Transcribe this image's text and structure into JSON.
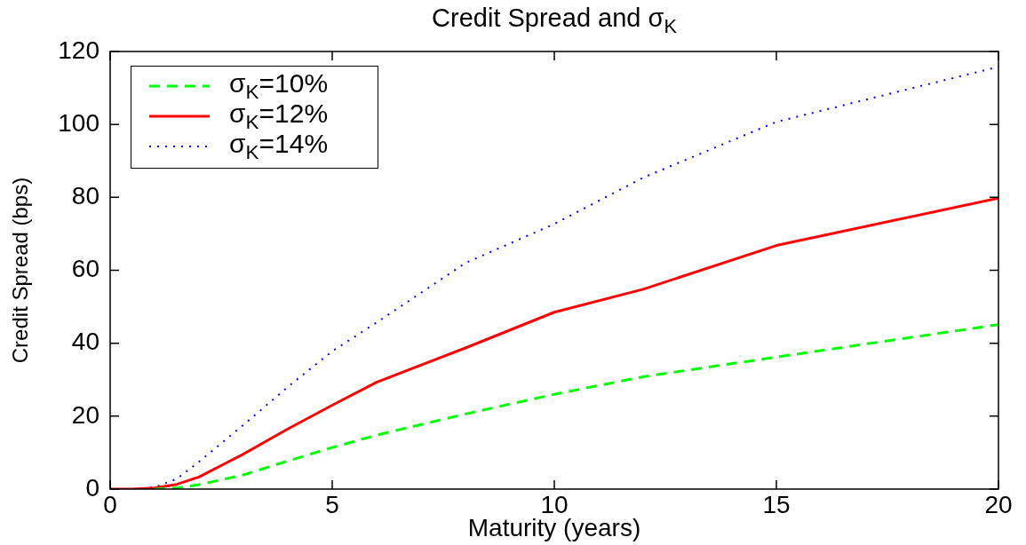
{
  "chart_data": {
    "type": "line",
    "title": "Credit Spread and σ$_{K}$",
    "xlabel": "Maturity (years)",
    "ylabel": "Credit Spread (bps)",
    "x": [
      0,
      0.5,
      1,
      1.5,
      2,
      3,
      4,
      5,
      6,
      8,
      10,
      12,
      15,
      20
    ],
    "series": [
      {
        "name": "σ$_{K}$=10%",
        "color": "#00ff00",
        "line_style": "dashed",
        "values": [
          null,
          null,
          0,
          0.3,
          1.2,
          3.9,
          7.7,
          11.4,
          14.8,
          20.6,
          26,
          30.8,
          36.2,
          45.1
        ]
      },
      {
        "name": "σ$_{K}$=12%",
        "color": "#ff0000",
        "line_style": "solid",
        "values": [
          0,
          0,
          0.3,
          1.3,
          3.3,
          9.6,
          16.5,
          23,
          29.3,
          38.7,
          48.5,
          54.8,
          66.8,
          79.8
        ]
      },
      {
        "name": "σ$_{K}$=14%",
        "color": "#0000ff",
        "line_style": "dotted",
        "values": [
          0,
          0,
          0.5,
          2.8,
          7.5,
          17.6,
          28,
          37.8,
          45.7,
          62,
          72.7,
          85.4,
          100.7,
          115.8
        ]
      }
    ],
    "xlim": [
      0,
      20
    ],
    "xticks": [
      0,
      5,
      10,
      15,
      20
    ],
    "ylim": [
      0,
      120
    ],
    "yticks": [
      0,
      20,
      40,
      60,
      80,
      100,
      120
    ],
    "legend": "top left",
    "marker": "none"
  }
}
